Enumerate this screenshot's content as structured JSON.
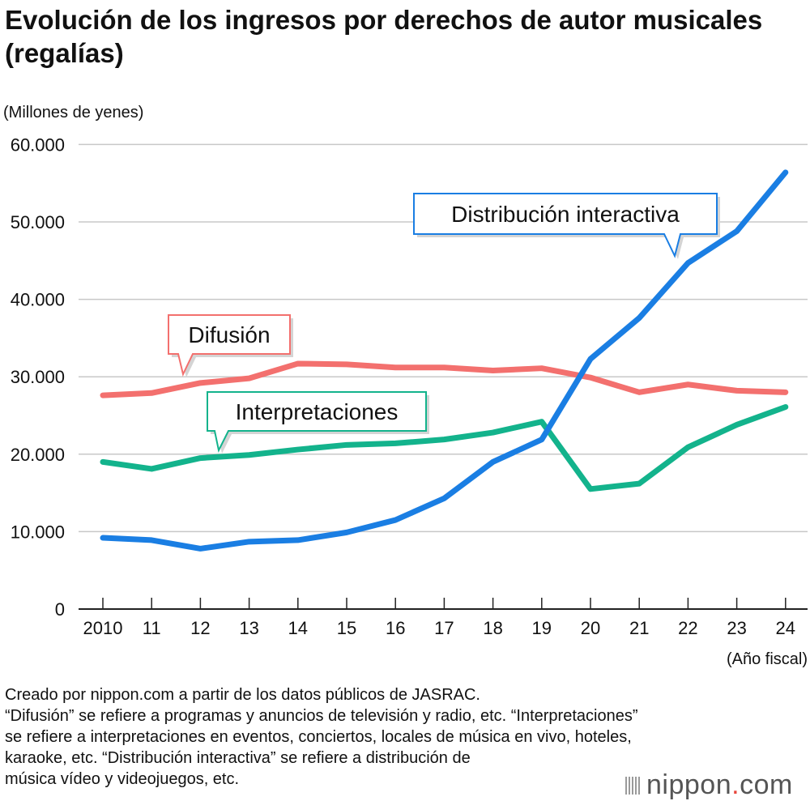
{
  "title": "Evolución de los ingresos por derechos de autor musicales (regalías)",
  "chart_data": {
    "type": "line",
    "title": "Evolución de los ingresos por derechos de autor musicales (regalías)",
    "ylabel": "(Millones de yenes)",
    "xlabel": "(Año fiscal)",
    "categories": [
      "2010",
      "11",
      "12",
      "13",
      "14",
      "15",
      "16",
      "17",
      "18",
      "19",
      "20",
      "21",
      "22",
      "23",
      "24"
    ],
    "ylim": [
      0,
      60000
    ],
    "yticks": [
      0,
      10000,
      20000,
      30000,
      40000,
      50000,
      60000
    ],
    "ytick_labels": [
      "0",
      "10.000",
      "20.000",
      "30.000",
      "40.000",
      "50.000",
      "60.000"
    ],
    "grid": true,
    "series": [
      {
        "name": "Difusión",
        "color": "#f3706e",
        "values": [
          27600,
          27900,
          29200,
          29800,
          31700,
          31600,
          31200,
          31200,
          30800,
          31100,
          29900,
          28000,
          29000,
          28200,
          28000
        ]
      },
      {
        "name": "Interpretaciones",
        "color": "#13b38c",
        "values": [
          19000,
          18100,
          19500,
          19900,
          20600,
          21200,
          21400,
          21900,
          22800,
          24200,
          15500,
          16200,
          20900,
          23800,
          26100
        ]
      },
      {
        "name": "Distribución interactiva",
        "color": "#1a7ee3",
        "values": [
          9200,
          8900,
          7800,
          8700,
          8900,
          9900,
          11500,
          14300,
          19000,
          21900,
          32300,
          37600,
          44700,
          48800,
          56400
        ]
      }
    ]
  },
  "footnote": [
    "Creado por nippon.com a partir de los datos públicos de JASRAC.",
    "“Difusión” se refiere a programas y anuncios de televisión y radio, etc. “Interpretaciones”",
    "se refiere a interpretaciones en eventos, conciertos, locales de música en vivo, hoteles,",
    "karaoke, etc. “Distribución interactiva” se refiere a distribución de",
    "música vídeo y videojuegos, etc."
  ],
  "brand": {
    "name": "nippon",
    "dot": ".",
    "suffix": "com"
  }
}
